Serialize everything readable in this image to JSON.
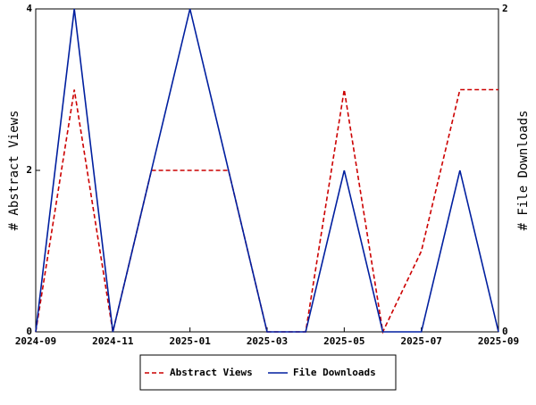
{
  "chart_data": {
    "type": "line",
    "x": [
      "2024-09",
      "2024-10",
      "2024-11",
      "2024-12",
      "2025-01",
      "2025-02",
      "2025-03",
      "2025-04",
      "2025-05",
      "2025-06",
      "2025-07",
      "2025-08",
      "2025-09"
    ],
    "xticks": [
      "2024-09",
      "2024-11",
      "2025-01",
      "2025-03",
      "2025-05",
      "2025-07",
      "2025-09"
    ],
    "ylabel": "# Abstract Views",
    "y2label": "# File Downloads",
    "ylim": [
      0,
      4
    ],
    "yticks": [
      0,
      2,
      4
    ],
    "y2lim": [
      0,
      2
    ],
    "y2ticks": [
      0,
      2
    ],
    "legend": "bottom",
    "series": [
      {
        "name": "Abstract Views",
        "color": "#cc0000",
        "dash": true,
        "values": [
          0,
          3,
          0,
          2,
          2,
          2,
          0,
          0,
          3,
          0,
          1,
          3,
          3
        ]
      },
      {
        "name": "File Downloads",
        "color": "#001f9f",
        "axis": "y2",
        "values": [
          0,
          2,
          0,
          1,
          2,
          1,
          0,
          0,
          1,
          0,
          0,
          1,
          0
        ]
      }
    ]
  }
}
